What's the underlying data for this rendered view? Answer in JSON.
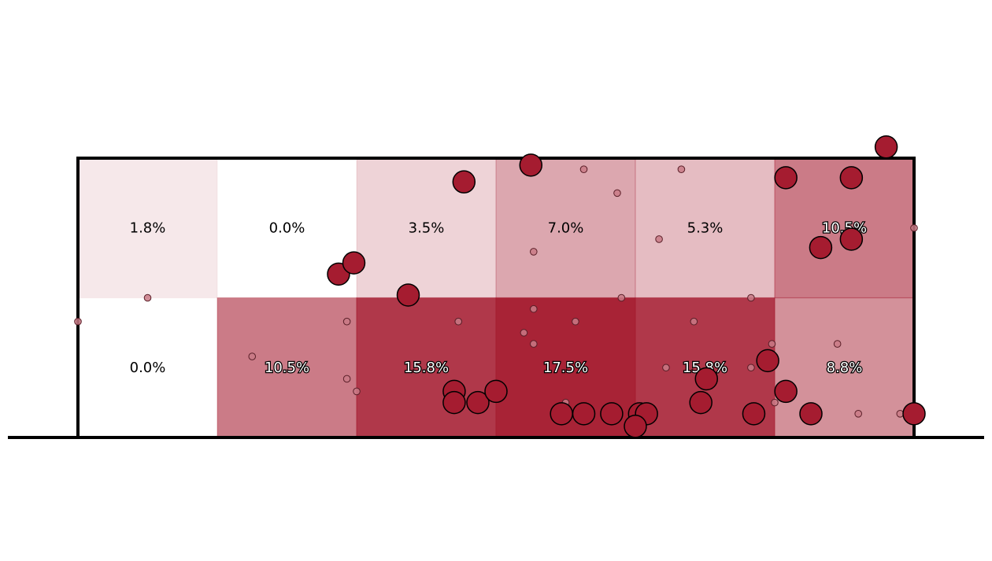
{
  "chart_data": {
    "type": "heatmap",
    "title": "",
    "xlabel": "",
    "ylabel": "",
    "grid": {
      "rows": 2,
      "cols": 6
    },
    "cells": [
      [
        1.8,
        0.0,
        3.5,
        7.0,
        5.3,
        10.5
      ],
      [
        0.0,
        10.5,
        15.8,
        17.5,
        15.8,
        8.8
      ]
    ],
    "cell_labels": [
      [
        "1.8%",
        "0.0%",
        "3.5%",
        "7.0%",
        "5.3%",
        "10.5%"
      ],
      [
        "0.0%",
        "10.5%",
        "15.8%",
        "17.5%",
        "15.8%",
        "8.8%"
      ]
    ],
    "max_value": 17.5,
    "colors": {
      "heat": "#a51c30",
      "large_marker": "#a51c30",
      "small_marker": "#c97a86",
      "frame": "#000000"
    },
    "large_markers": [
      [
        2.77,
        1.83
      ],
      [
        3.25,
        1.95
      ],
      [
        4.95,
        0.55
      ],
      [
        5.33,
        1.36
      ],
      [
        1.87,
        1.17
      ],
      [
        1.98,
        1.25
      ],
      [
        5.08,
        0.33
      ],
      [
        5.08,
        1.86
      ],
      [
        5.55,
        1.42
      ],
      [
        5.55,
        1.86
      ],
      [
        5.8,
        2.08
      ],
      [
        2.37,
        1.02
      ],
      [
        2.7,
        0.33
      ],
      [
        2.7,
        0.25
      ],
      [
        2.87,
        0.25
      ],
      [
        3.0,
        0.33
      ],
      [
        3.47,
        0.17
      ],
      [
        3.63,
        0.17
      ],
      [
        3.83,
        0.17
      ],
      [
        4.03,
        0.17
      ],
      [
        4.08,
        0.17
      ],
      [
        4.0,
        0.08
      ],
      [
        4.47,
        0.25
      ],
      [
        4.51,
        0.42
      ],
      [
        4.85,
        0.17
      ],
      [
        5.26,
        0.17
      ],
      [
        6.0,
        0.17
      ]
    ],
    "small_markers": [
      [
        0.5,
        1.0
      ],
      [
        0.0,
        0.83
      ],
      [
        1.25,
        0.58
      ],
      [
        1.93,
        0.83
      ],
      [
        1.93,
        0.42
      ],
      [
        2.0,
        0.33
      ],
      [
        2.73,
        0.83
      ],
      [
        3.27,
        1.33
      ],
      [
        3.63,
        1.92
      ],
      [
        3.87,
        1.75
      ],
      [
        3.9,
        1.0
      ],
      [
        3.2,
        0.75
      ],
      [
        3.27,
        0.67
      ],
      [
        3.27,
        0.92
      ],
      [
        3.5,
        0.25
      ],
      [
        3.57,
        0.83
      ],
      [
        3.8,
        0.17
      ],
      [
        4.22,
        0.5
      ],
      [
        4.33,
        1.92
      ],
      [
        4.17,
        1.42
      ],
      [
        4.83,
        1.0
      ],
      [
        4.83,
        0.5
      ],
      [
        4.42,
        0.83
      ],
      [
        5.0,
        0.25
      ],
      [
        5.45,
        0.67
      ],
      [
        5.6,
        0.17
      ],
      [
        5.9,
        0.17
      ],
      [
        6.0,
        1.5
      ],
      [
        4.98,
        0.67
      ]
    ]
  }
}
